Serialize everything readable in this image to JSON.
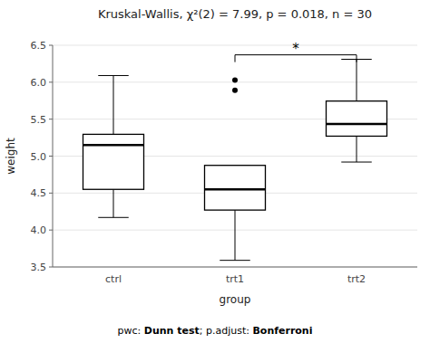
{
  "chart_data": {
    "type": "box",
    "title": "Kruskal-Wallis, χ²(2) = 7.99, p = 0.018, n = 30",
    "x_label": "group",
    "y_label": "weight",
    "categories": [
      "ctrl",
      "trt1",
      "trt2"
    ],
    "boxes": [
      {
        "q1": 4.55,
        "median": 5.15,
        "q3": 5.295,
        "whislo": 4.17,
        "whishi": 6.09,
        "fliers": []
      },
      {
        "q1": 4.27,
        "median": 4.55,
        "q3": 4.875,
        "whislo": 3.59,
        "whishi": 4.875,
        "fliers": [
          5.89,
          6.03
        ]
      },
      {
        "q1": 5.27,
        "median": 5.435,
        "q3": 5.745,
        "whislo": 4.92,
        "whishi": 6.31,
        "fliers": []
      }
    ],
    "color": "#000000",
    "ylim": [
      3.5,
      6.5
    ],
    "yticks": [
      3.5,
      {
        "value": 4.0,
        "label": "4.0"
      },
      4.5,
      {
        "value": 5.0,
        "label": "5.0"
      },
      5.5,
      {
        "value": 6.0,
        "label": "6.0"
      },
      6.5
    ],
    "annotations": [
      {
        "text": "*",
        "from": "trt1",
        "to": "trt2",
        "y": 6.37
      }
    ],
    "footnote": [
      "pwc: ",
      "Dunn test",
      "; p.adjust: ",
      "Bonferroni"
    ]
  }
}
